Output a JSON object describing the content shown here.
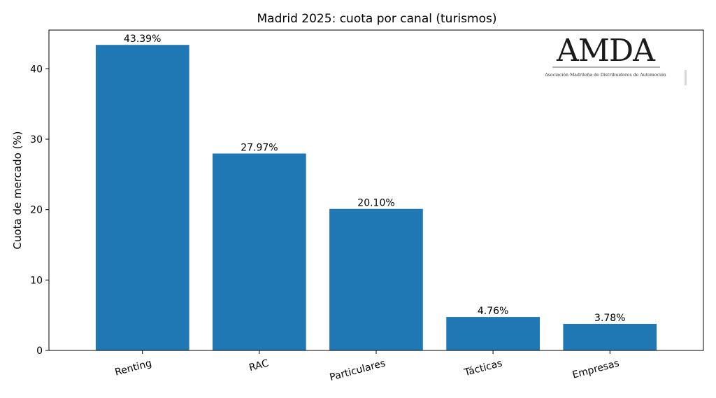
{
  "chart_data": {
    "type": "bar",
    "title": "Madrid 2025: cuota por canal (turismos)",
    "xlabel": "",
    "ylabel": "Cuota de mercado (%)",
    "categories": [
      "Renting",
      "RAC",
      "Particulares",
      "Tácticas",
      "Empresas"
    ],
    "values": [
      43.39,
      27.97,
      20.1,
      4.76,
      3.78
    ],
    "value_labels": [
      "43.39%",
      "27.97%",
      "20.10%",
      "4.76%",
      "3.78%"
    ],
    "ylim": [
      0,
      45.5
    ],
    "yticks": [
      0,
      10,
      20,
      30,
      40
    ],
    "bar_color": "#1f77b4",
    "grid": false,
    "legend": "none"
  },
  "logo": {
    "text": "AMDA",
    "subtitle": "Asociación Madrileña de Distribuidores de Automoción"
  }
}
